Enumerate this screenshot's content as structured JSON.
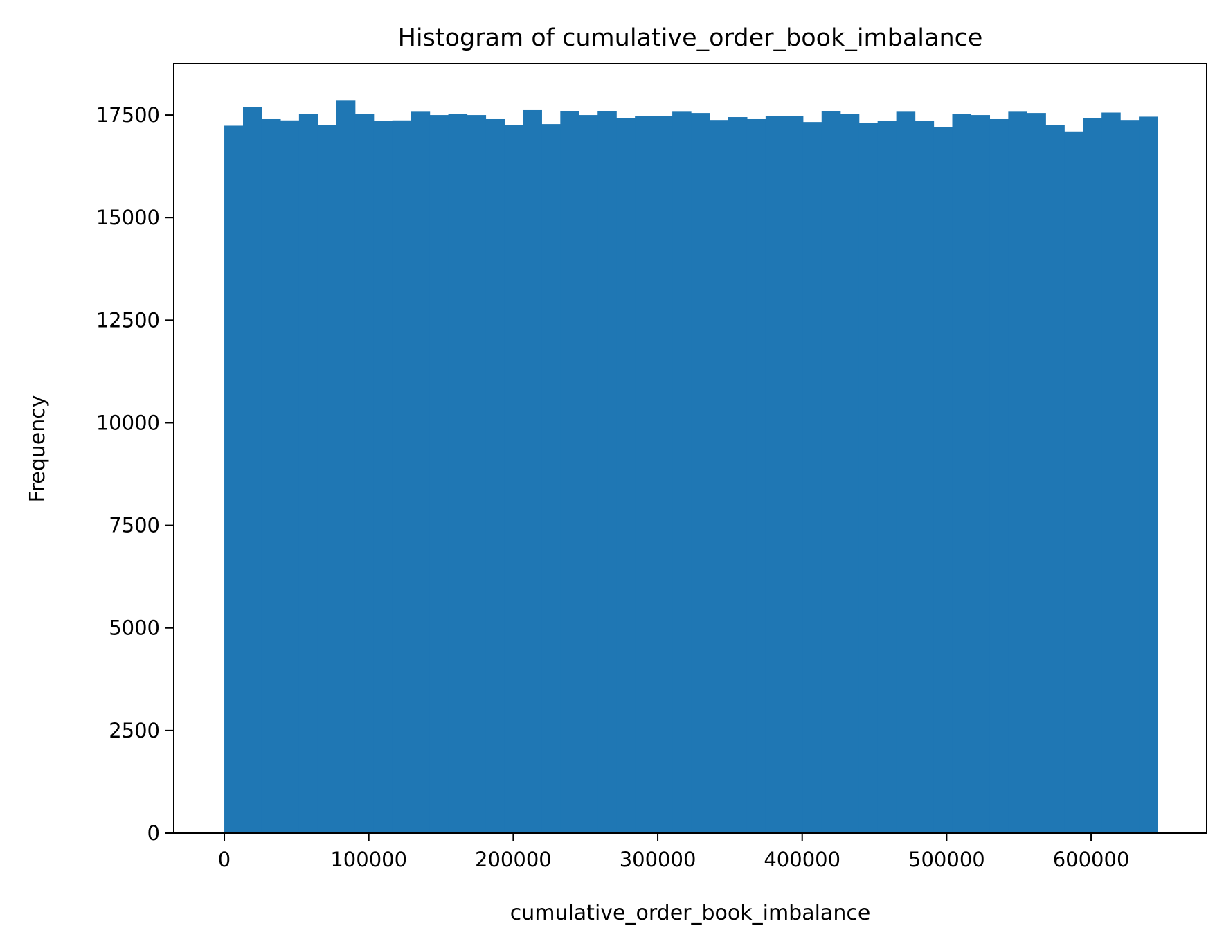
{
  "chart_data": {
    "type": "bar",
    "title": "Histogram of cumulative_order_book_imbalance",
    "xlabel": "cumulative_order_book_imbalance",
    "ylabel": "Frequency",
    "xlim": [
      -35000,
      680000
    ],
    "ylim": [
      0,
      18750
    ],
    "xticks": [
      0,
      100000,
      200000,
      300000,
      400000,
      500000,
      600000
    ],
    "yticks": [
      0,
      2500,
      5000,
      7500,
      10000,
      12500,
      15000,
      17500
    ],
    "bin_start": 0,
    "bin_end": 646000,
    "values": [
      17240,
      17700,
      17400,
      17370,
      17530,
      17250,
      17850,
      17530,
      17350,
      17370,
      17580,
      17500,
      17530,
      17500,
      17400,
      17250,
      17620,
      17280,
      17600,
      17500,
      17600,
      17430,
      17480,
      17480,
      17580,
      17550,
      17380,
      17450,
      17400,
      17480,
      17480,
      17330,
      17600,
      17530,
      17300,
      17350,
      17580,
      17350,
      17200,
      17530,
      17500,
      17400,
      17580,
      17550,
      17250,
      17100,
      17430,
      17560,
      17380,
      17460
    ],
    "grid": false,
    "bar_color": "#1f77b4"
  }
}
